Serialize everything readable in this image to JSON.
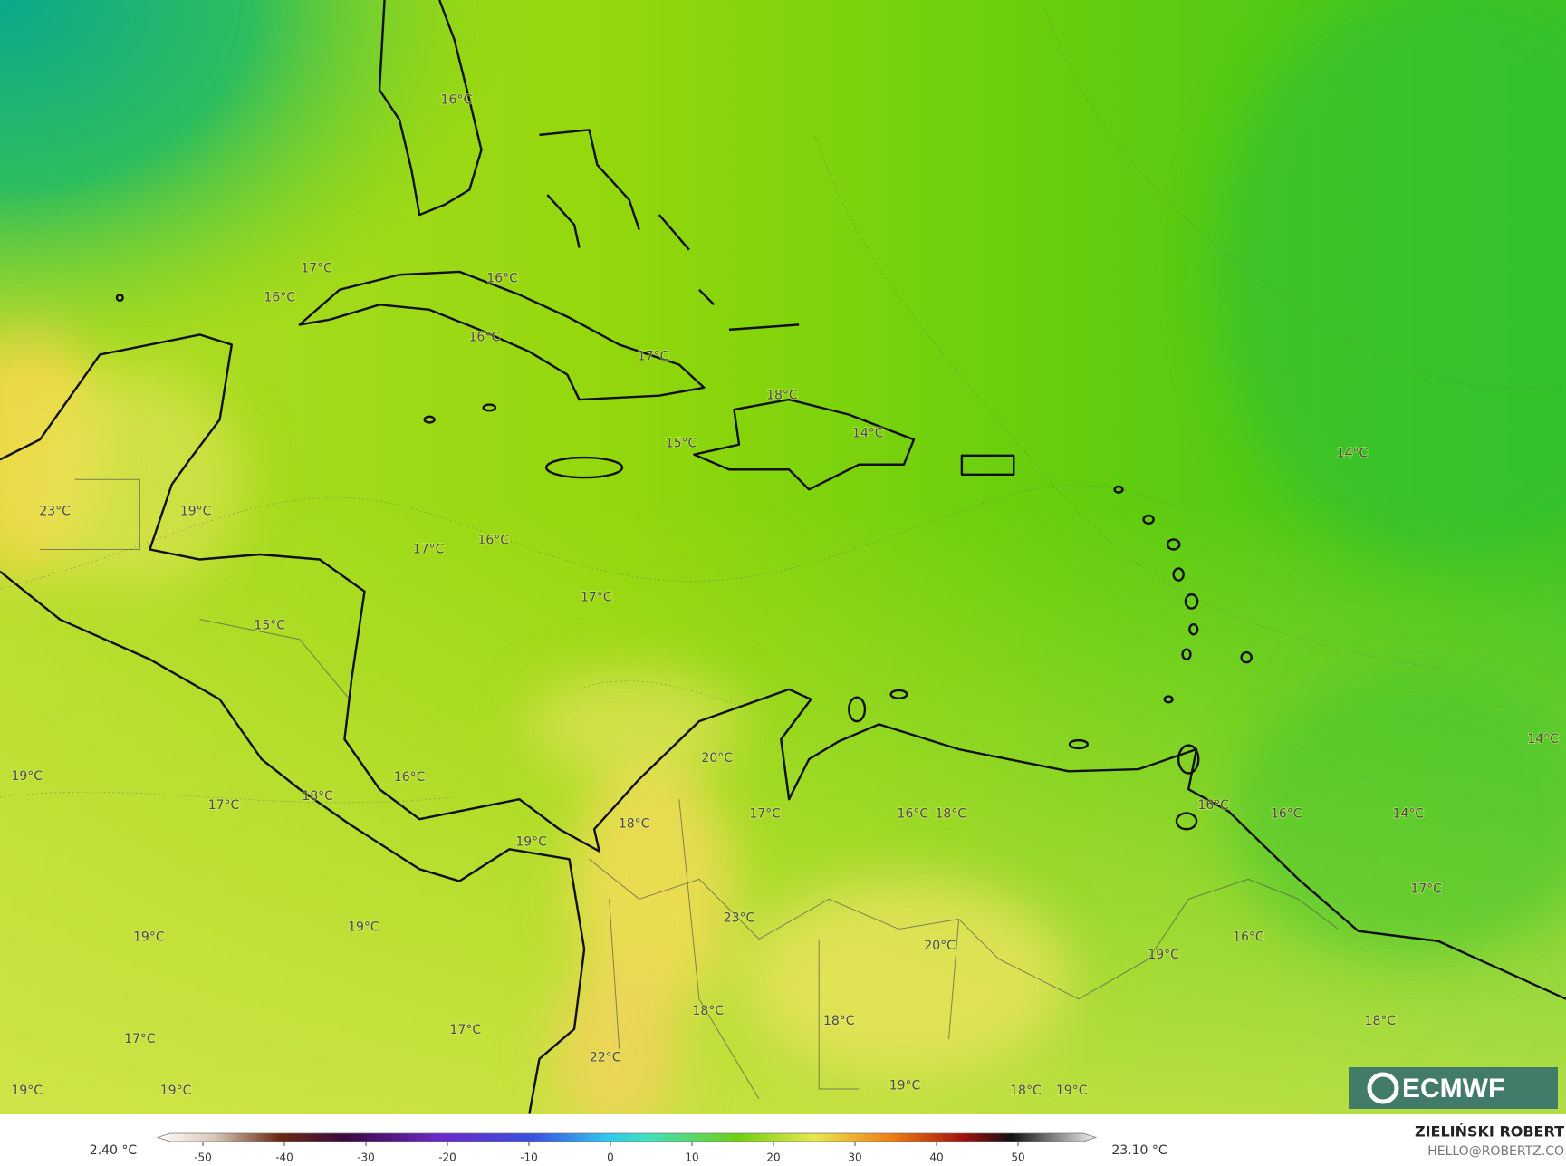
{
  "map": {
    "labels": [
      "16°C",
      "17°C",
      "16°C",
      "16°C",
      "16°C",
      "17°C",
      "18°C",
      "14°C",
      "15°C",
      "14°C",
      "23°C",
      "19°C",
      "17°C",
      "16°C",
      "17°C",
      "15°C",
      "14°C",
      "20°C",
      "19°C",
      "16°C",
      "18°C",
      "17°C",
      "16°C",
      "17°C",
      "16°C",
      "18°C",
      "16°C",
      "14°C",
      "18°C",
      "19°C",
      "17°C",
      "23°C",
      "19°C",
      "19°C",
      "20°C",
      "16°C",
      "19°C",
      "18°C",
      "18°C",
      "18°C",
      "17°C",
      "17°C",
      "22°C",
      "19°C",
      "19°C",
      "19°C",
      "18°C",
      "19°C"
    ]
  },
  "logo": "ECMWF",
  "colorbar": {
    "range": [
      -54,
      58
    ],
    "ticks": [
      -50,
      -40,
      -30,
      -20,
      -10,
      0,
      10,
      20,
      30,
      40,
      50
    ],
    "min_label": "2.40 °C",
    "max_label": "23.10 °C"
  },
  "credit": {
    "author": "ZIELIŃSKI ROBERT",
    "email": "HELLO@ROBERTZ.CO"
  }
}
